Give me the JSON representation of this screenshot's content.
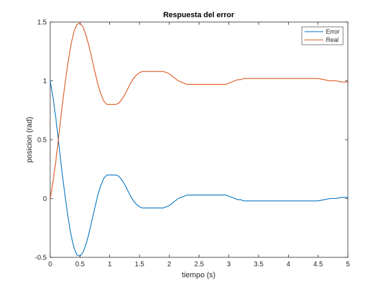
{
  "chart_data": {
    "type": "line",
    "title": "Respuesta del error",
    "xlabel": "tiempo (s)",
    "ylabel": "posicion (rad)",
    "xlim": [
      0,
      5
    ],
    "ylim": [
      -0.5,
      1.5
    ],
    "xticks": [
      0,
      0.5,
      1,
      1.5,
      2,
      2.5,
      3,
      3.5,
      4,
      4.5,
      5
    ],
    "yticks": [
      -0.5,
      0,
      0.5,
      1,
      1.5
    ],
    "xtick_labels": [
      "0",
      "0.5",
      "1",
      "1.5",
      "2",
      "2.5",
      "3",
      "3.5",
      "4",
      "4.5",
      "5"
    ],
    "ytick_labels": [
      "-0.5",
      "0",
      "0.5",
      "1",
      "1.5"
    ],
    "grid": false,
    "legend": "top-right",
    "series": [
      {
        "name": "Error",
        "color": "#0072BD",
        "x": [
          0,
          0.05,
          0.1,
          0.15,
          0.2,
          0.25,
          0.3,
          0.35,
          0.4,
          0.45,
          0.5,
          0.55,
          0.6,
          0.65,
          0.7,
          0.75,
          0.8,
          0.85,
          0.9,
          0.95,
          1.0,
          1.05,
          1.1,
          1.15,
          1.2,
          1.25,
          1.3,
          1.35,
          1.4,
          1.45,
          1.5,
          1.55,
          1.6,
          1.65,
          1.7,
          1.8,
          1.9,
          2.0,
          2.05,
          2.1,
          2.15,
          2.2,
          2.25,
          2.3,
          2.35,
          2.4,
          2.5,
          2.6,
          2.7,
          2.8,
          2.9,
          2.95,
          3.0,
          3.05,
          3.1,
          3.15,
          3.2,
          3.25,
          3.3,
          3.4,
          3.6,
          3.8,
          4.0,
          4.2,
          4.4,
          4.5,
          4.6,
          4.7,
          4.8,
          4.9,
          5.0
        ],
        "values": [
          1.0,
          0.85,
          0.66,
          0.44,
          0.22,
          0.02,
          -0.16,
          -0.31,
          -0.42,
          -0.48,
          -0.49,
          -0.46,
          -0.39,
          -0.3,
          -0.19,
          -0.08,
          0.03,
          0.11,
          0.17,
          0.2,
          0.2,
          0.2,
          0.2,
          0.19,
          0.16,
          0.12,
          0.07,
          0.02,
          -0.02,
          -0.05,
          -0.07,
          -0.08,
          -0.08,
          -0.08,
          -0.08,
          -0.08,
          -0.08,
          -0.06,
          -0.04,
          -0.02,
          -0.0,
          0.01,
          0.02,
          0.03,
          0.03,
          0.03,
          0.03,
          0.03,
          0.03,
          0.03,
          0.03,
          0.03,
          0.02,
          0.01,
          0.0,
          -0.01,
          -0.01,
          -0.02,
          -0.02,
          -0.02,
          -0.02,
          -0.02,
          -0.02,
          -0.02,
          -0.02,
          -0.02,
          -0.01,
          -0.0,
          0.0,
          0.01,
          0.01
        ]
      },
      {
        "name": "Real",
        "color": "#D95319",
        "x": [
          0,
          0.05,
          0.1,
          0.15,
          0.2,
          0.25,
          0.3,
          0.35,
          0.4,
          0.45,
          0.5,
          0.55,
          0.6,
          0.65,
          0.7,
          0.75,
          0.8,
          0.85,
          0.9,
          0.95,
          1.0,
          1.05,
          1.1,
          1.15,
          1.2,
          1.25,
          1.3,
          1.35,
          1.4,
          1.45,
          1.5,
          1.55,
          1.6,
          1.65,
          1.7,
          1.8,
          1.9,
          2.0,
          2.05,
          2.1,
          2.15,
          2.2,
          2.25,
          2.3,
          2.35,
          2.4,
          2.5,
          2.6,
          2.7,
          2.8,
          2.9,
          2.95,
          3.0,
          3.05,
          3.1,
          3.15,
          3.2,
          3.25,
          3.3,
          3.4,
          3.6,
          3.8,
          4.0,
          4.2,
          4.4,
          4.5,
          4.6,
          4.7,
          4.8,
          4.9,
          5.0
        ],
        "values": [
          0.0,
          0.15,
          0.34,
          0.56,
          0.78,
          0.98,
          1.16,
          1.31,
          1.42,
          1.48,
          1.49,
          1.46,
          1.39,
          1.3,
          1.19,
          1.08,
          0.97,
          0.89,
          0.83,
          0.8,
          0.8,
          0.8,
          0.8,
          0.81,
          0.84,
          0.88,
          0.93,
          0.98,
          1.02,
          1.05,
          1.07,
          1.08,
          1.08,
          1.08,
          1.08,
          1.08,
          1.08,
          1.06,
          1.04,
          1.02,
          1.0,
          0.99,
          0.98,
          0.97,
          0.97,
          0.97,
          0.97,
          0.97,
          0.97,
          0.97,
          0.97,
          0.97,
          0.98,
          0.99,
          1.0,
          1.01,
          1.01,
          1.02,
          1.02,
          1.02,
          1.02,
          1.02,
          1.02,
          1.02,
          1.02,
          1.02,
          1.01,
          1.0,
          1.0,
          0.99,
          0.99
        ]
      }
    ]
  }
}
